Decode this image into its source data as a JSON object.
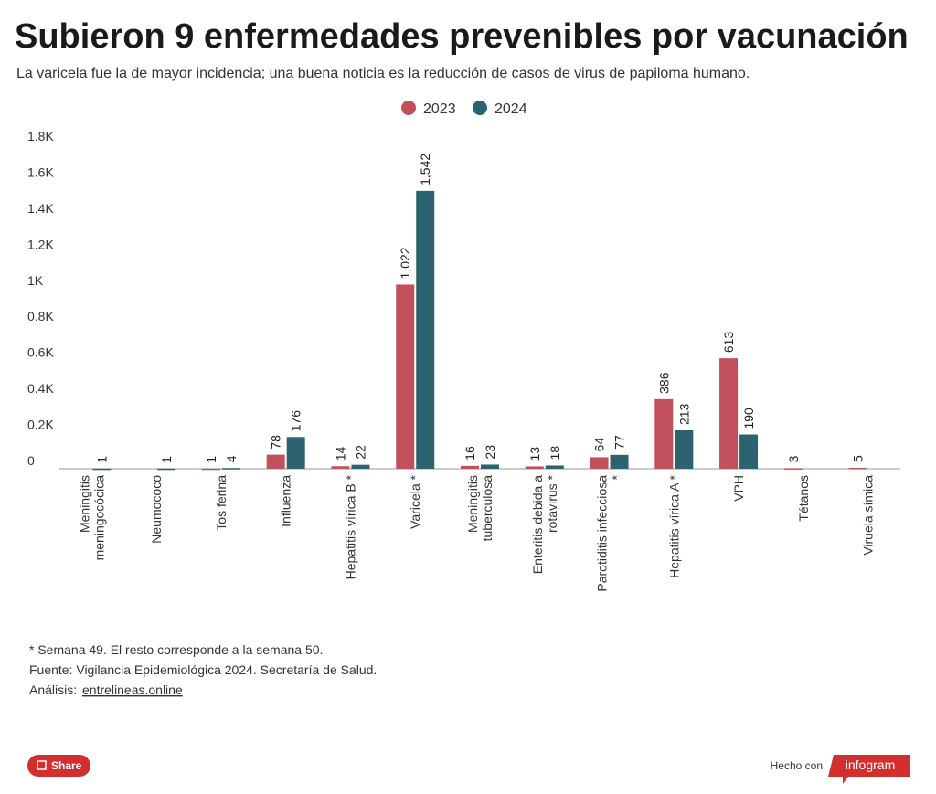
{
  "chart_data": {
    "type": "bar",
    "title": "Subieron 9 enfermedades prevenibles por vacunación",
    "subtitle": "La varicela fue la de mayor incidencia; una buena noticia es la reducción de casos de virus de papiloma humano.",
    "categories": [
      [
        "Meningitis",
        "meningocócica"
      ],
      [
        "Neumococo"
      ],
      [
        "Tos ferina"
      ],
      [
        "Influenza"
      ],
      [
        "Hepatitis vírica B *"
      ],
      [
        "Varicela *"
      ],
      [
        "Meningitis",
        "tuberculosa"
      ],
      [
        "Enteritis debida a",
        "rotavirus *"
      ],
      [
        "Parotiditis infecciosa",
        "*"
      ],
      [
        "Hepatitis vírica A *"
      ],
      [
        "VPH"
      ],
      [
        "Tétanos"
      ],
      [
        "Viruela símica"
      ]
    ],
    "series": [
      {
        "name": "2023",
        "color": "#c0505c",
        "values": [
          null,
          null,
          1,
          78,
          14,
          1022,
          16,
          13,
          64,
          386,
          613,
          3,
          5
        ],
        "value_labels": [
          null,
          null,
          "1",
          "78",
          "14",
          "1,022",
          "16",
          "13",
          "64",
          "386",
          "613",
          "3",
          "5"
        ]
      },
      {
        "name": "2024",
        "color": "#2b6470",
        "values": [
          1,
          1,
          4,
          176,
          22,
          1542,
          23,
          18,
          77,
          213,
          190,
          null,
          null
        ],
        "value_labels": [
          "1",
          "1",
          "4",
          "176",
          "22",
          "1,542",
          "23",
          "18",
          "77",
          "213",
          "190",
          null,
          null
        ]
      }
    ],
    "ylim": [
      0,
      1800
    ],
    "yticks": [
      {
        "value": 0,
        "label": "0"
      },
      {
        "value": 200,
        "label": "0.2K"
      },
      {
        "value": 400,
        "label": "0.4K"
      },
      {
        "value": 600,
        "label": "0.6K"
      },
      {
        "value": 800,
        "label": "0.8K"
      },
      {
        "value": 1000,
        "label": "1K"
      },
      {
        "value": 1200,
        "label": "1.2K"
      },
      {
        "value": 1400,
        "label": "1.4K"
      },
      {
        "value": 1600,
        "label": "1.6K"
      },
      {
        "value": 1800,
        "label": "1.8K"
      }
    ],
    "legend": "top",
    "grid": false
  },
  "footer": {
    "note": "* Semana 49. El resto corresponde a la semana 50.",
    "source": "Fuente: Vigilancia Epidemiológica 2024. Secretaría de Salud.",
    "analysis": "Análisis:",
    "link": "entrelineas.online",
    "share": "Share",
    "made_with": "Hecho con",
    "brand": "infogram"
  }
}
